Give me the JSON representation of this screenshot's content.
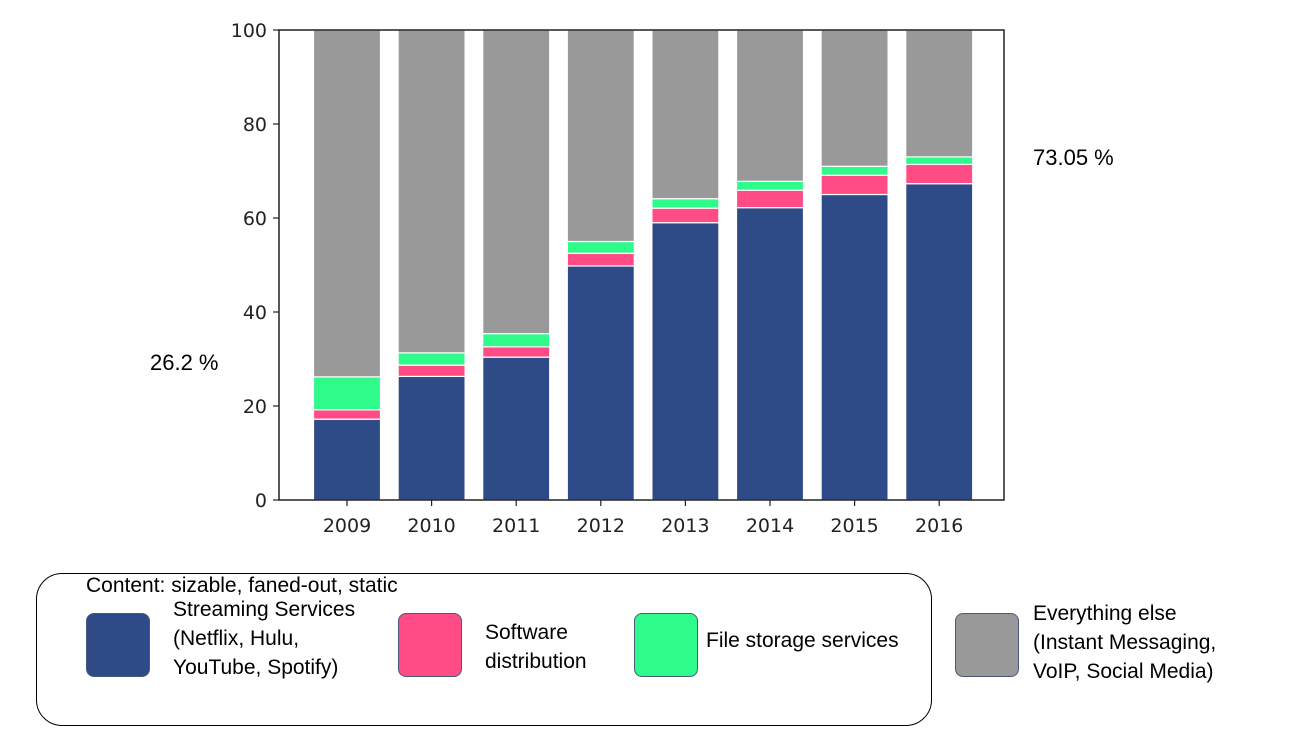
{
  "chart_data": {
    "type": "bar",
    "stacked": true,
    "categories": [
      "2009",
      "2010",
      "2011",
      "2012",
      "2013",
      "2014",
      "2015",
      "2016"
    ],
    "series": [
      {
        "name": "Streaming Services (Netflix, Hulu, YouTube, Spotify)",
        "color": "#2e4a87",
        "values": [
          17.2,
          26.3,
          30.4,
          49.8,
          59.0,
          62.2,
          65.0,
          67.3
        ]
      },
      {
        "name": "Software distribution",
        "color": "#ff4b86",
        "values": [
          2.0,
          2.4,
          2.2,
          2.7,
          3.1,
          3.7,
          4.1,
          4.1
        ]
      },
      {
        "name": "File storage services",
        "color": "#2efb8a",
        "values": [
          7.0,
          2.6,
          2.8,
          2.5,
          2.0,
          1.9,
          1.9,
          1.6
        ]
      },
      {
        "name": "Everything else (Instant Messaging, VoIP, Social Media)",
        "color": "#999999",
        "values": [
          73.8,
          68.7,
          64.6,
          45.0,
          35.9,
          32.2,
          29.0,
          27.0
        ]
      }
    ],
    "yticks": [
      "0",
      "20",
      "40",
      "60",
      "80",
      "100"
    ],
    "ylim": [
      0,
      100
    ],
    "title": "",
    "xlabel": "",
    "ylabel": "",
    "grid": false,
    "legend_placement": "bottom",
    "annotations": [
      "26.2 %",
      "73.05 %"
    ]
  },
  "legend": {
    "note": "Content: sizable, faned-out, static",
    "items": [
      {
        "lines": [
          "Streaming Services",
          "(Netflix, Hulu,",
          "YouTube, Spotify)"
        ],
        "color": "#2e4a87"
      },
      {
        "lines": [
          "Software",
          "distribution"
        ],
        "color": "#ff4b86"
      },
      {
        "lines": [
          "File storage services"
        ],
        "color": "#2efb8a"
      },
      {
        "lines": [
          "Everything else",
          "(Instant Messaging,",
          "VoIP, Social Media)"
        ],
        "color": "#999999"
      }
    ]
  }
}
